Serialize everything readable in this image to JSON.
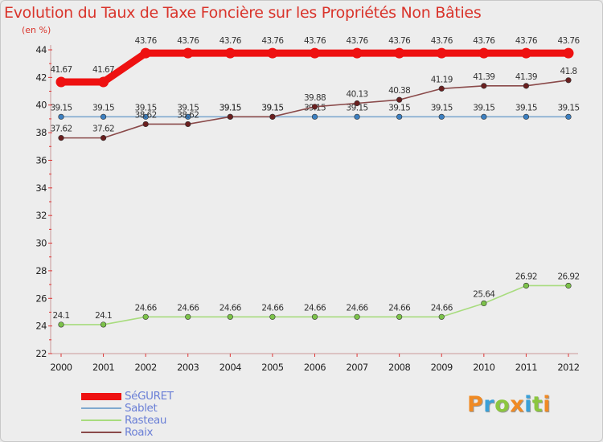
{
  "header": {
    "title": "Evolution du Taux de Taxe Foncière sur les Propriétés Non Bâties",
    "unit": "(en %)"
  },
  "brand": {
    "text": "Proxiti",
    "letters": [
      "P",
      "r",
      "o",
      "x",
      "i",
      "t",
      "i"
    ],
    "colors": [
      "#f08a24",
      "#3aa0d8",
      "#8cc63f",
      "#f08a24",
      "#3aa0d8",
      "#8cc63f",
      "#f08a24"
    ]
  },
  "chart_data": {
    "type": "line",
    "title": "Evolution du Taux de Taxe Foncière sur les Propriétés Non Bâties",
    "ylabel": "(en %)",
    "xlabel": "",
    "x": [
      "2000",
      "2001",
      "2002",
      "2003",
      "2004",
      "2005",
      "2006",
      "2007",
      "2008",
      "2009",
      "2010",
      "2011",
      "2012"
    ],
    "ylim": [
      22,
      44
    ],
    "yticks": [
      22,
      24,
      26,
      28,
      30,
      32,
      34,
      36,
      38,
      40,
      42,
      44
    ],
    "grid": false,
    "legend_position": "bottom-left",
    "series": [
      {
        "name": "SéGURET",
        "color": "#ee1111",
        "marker_fill": "#ee1111",
        "values": [
          41.67,
          41.67,
          43.76,
          43.76,
          43.76,
          43.76,
          43.76,
          43.76,
          43.76,
          43.76,
          43.76,
          43.76,
          43.76
        ],
        "labels": [
          "41.67",
          "41.67",
          "43.76",
          "43.76",
          "43.76",
          "43.76",
          "43.76",
          "43.76",
          "43.76",
          "43.76",
          "43.76",
          "43.76",
          "43.76"
        ]
      },
      {
        "name": "Sablet",
        "color": "#7fa9cf",
        "marker_fill": "#3c7fc0",
        "values": [
          39.15,
          39.15,
          39.15,
          39.15,
          39.15,
          39.15,
          39.15,
          39.15,
          39.15,
          39.15,
          39.15,
          39.15,
          39.15
        ],
        "labels": [
          "39.15",
          "39.15",
          "39.15",
          "39.15",
          "39.15",
          "39.15",
          "39.15",
          "39.15",
          "39.15",
          "39.15",
          "39.15",
          "39.15",
          "39.15"
        ]
      },
      {
        "name": "Rasteau",
        "color": "#a8dc7e",
        "marker_fill": "#7cc24a",
        "values": [
          24.1,
          24.1,
          24.66,
          24.66,
          24.66,
          24.66,
          24.66,
          24.66,
          24.66,
          24.66,
          25.64,
          26.92,
          26.92
        ],
        "labels": [
          "24.1",
          "24.1",
          "24.66",
          "24.66",
          "24.66",
          "24.66",
          "24.66",
          "24.66",
          "24.66",
          "24.66",
          "25.64",
          "26.92",
          "26.92"
        ]
      },
      {
        "name": "Roaix",
        "color": "#8a4a4a",
        "marker_fill": "#6a1f1f",
        "values": [
          37.62,
          37.62,
          38.62,
          38.62,
          39.15,
          39.15,
          39.88,
          40.13,
          40.38,
          41.19,
          41.39,
          41.39,
          41.8
        ],
        "labels": [
          "37.62",
          "37.62",
          "38.62",
          "38.62",
          "39.15",
          "39.15",
          "39.88",
          "40.13",
          "40.38",
          "41.19",
          "41.39",
          "41.39",
          "41.8"
        ]
      }
    ]
  }
}
